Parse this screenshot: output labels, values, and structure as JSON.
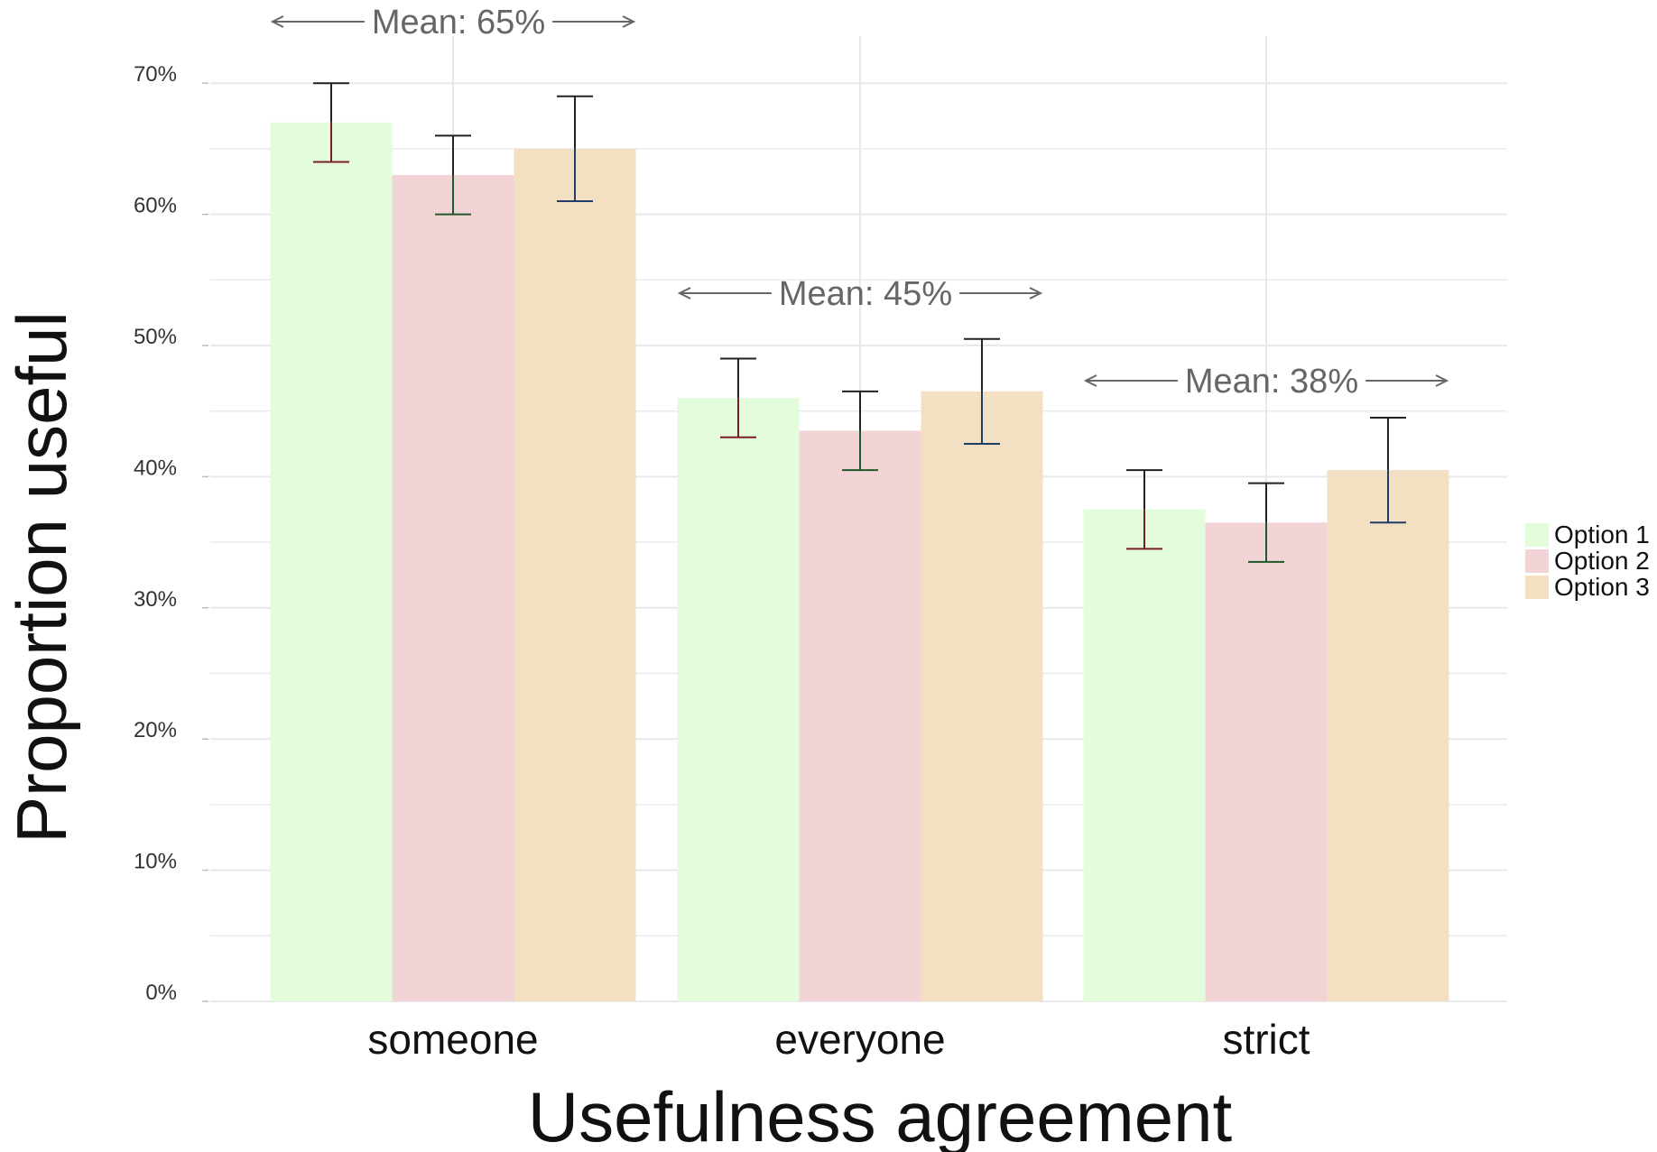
{
  "chart_data": {
    "type": "bar",
    "title": "",
    "xlabel": "Usefulness agreement",
    "ylabel": "Proportion useful",
    "categories": [
      "someone",
      "everyone",
      "strict"
    ],
    "series": [
      {
        "name": "Option 1",
        "values": [
          67.0,
          46.0,
          37.5
        ],
        "err_low": [
          64.0,
          43.0,
          34.5
        ],
        "err_high": [
          70.0,
          49.0,
          40.5
        ],
        "color": "#e2fcdc",
        "err_color": "#7a1f1f"
      },
      {
        "name": "Option 2",
        "values": [
          63.0,
          43.5,
          36.5
        ],
        "err_low": [
          60.0,
          40.5,
          33.5
        ],
        "err_high": [
          66.0,
          46.5,
          39.5
        ],
        "color": "#f2d4d6",
        "err_color": "#1f5a2a"
      },
      {
        "name": "Option 3",
        "values": [
          65.0,
          46.5,
          40.5
        ],
        "err_low": [
          61.0,
          42.5,
          36.5
        ],
        "err_high": [
          69.0,
          50.5,
          44.5
        ],
        "color": "#f3dfc2",
        "err_color": "#203d6a"
      }
    ],
    "annotations": [
      {
        "category": "someone",
        "text": "Mean: 65%",
        "value": 65
      },
      {
        "category": "everyone",
        "text": "Mean: 45%",
        "value": 45
      },
      {
        "category": "strict",
        "text": "Mean: 38%",
        "value": 38
      }
    ],
    "yticks": [
      0,
      10,
      20,
      30,
      40,
      50,
      60,
      70
    ],
    "ytick_labels": [
      "0%",
      "10%",
      "20%",
      "30%",
      "40%",
      "50%",
      "60%",
      "70%"
    ],
    "ylim": [
      0,
      73
    ],
    "grid": true,
    "legend_position": "right",
    "colors": {
      "grid": "#e9e9e9",
      "errbar_top": "#222222",
      "mean_arrow": "#666666"
    }
  }
}
